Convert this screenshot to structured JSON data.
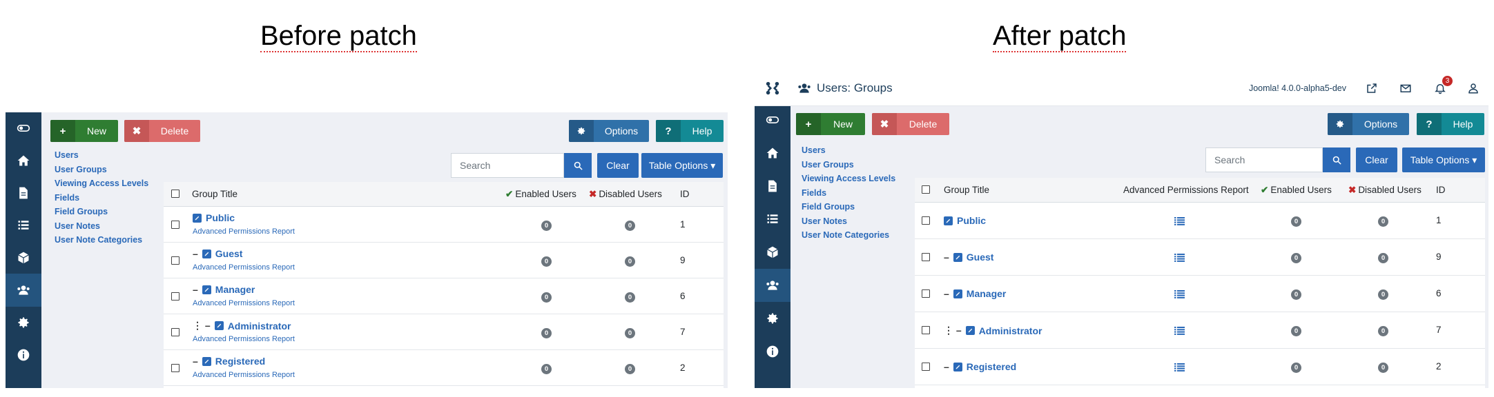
{
  "captions": {
    "before": "Before patch",
    "after": "After patch"
  },
  "topbar": {
    "title": "Users: Groups",
    "version": "Joomla! 4.0.0-alpha5-dev",
    "notification_count": "3"
  },
  "toolbar": {
    "new_label": "New",
    "delete_label": "Delete",
    "options_label": "Options",
    "help_label": "Help",
    "help_icon": "?"
  },
  "submenu": [
    "Users",
    "User Groups",
    "Viewing Access Levels",
    "Fields",
    "Field Groups",
    "User Notes",
    "User Note Categories"
  ],
  "search": {
    "placeholder": "Search",
    "clear_label": "Clear",
    "table_options_label": "Table Options ▾"
  },
  "columns": {
    "group_title": "Group Title",
    "advanced_permissions_report": "Advanced Permissions Report",
    "enabled_users": "Enabled Users",
    "disabled_users": "Disabled Users",
    "id": "ID"
  },
  "rows": [
    {
      "prefix": "",
      "title": "Public",
      "enabled": "0",
      "disabled": "0",
      "id": "1"
    },
    {
      "prefix": "–",
      "title": "Guest",
      "enabled": "0",
      "disabled": "0",
      "id": "9"
    },
    {
      "prefix": "–",
      "title": "Manager",
      "enabled": "0",
      "disabled": "0",
      "id": "6"
    },
    {
      "prefix": "⋮ –",
      "title": "Administrator",
      "enabled": "0",
      "disabled": "0",
      "id": "7"
    },
    {
      "prefix": "–",
      "title": "Registered",
      "enabled": "0",
      "disabled": "0",
      "id": "2"
    }
  ],
  "row_link_label": "Advanced Permissions Report",
  "sidebar_icons": [
    "menu-toggle-icon",
    "home-icon",
    "file-icon",
    "list-icon",
    "cube-icon",
    "users-icon",
    "gear-icon",
    "info-icon"
  ],
  "colors": {
    "sidebar": "#1c3d5a",
    "link": "#2a69b8",
    "new": "#2f7d32",
    "delete": "#dc6b6b",
    "options": "#3071a9",
    "help": "#138a95"
  }
}
